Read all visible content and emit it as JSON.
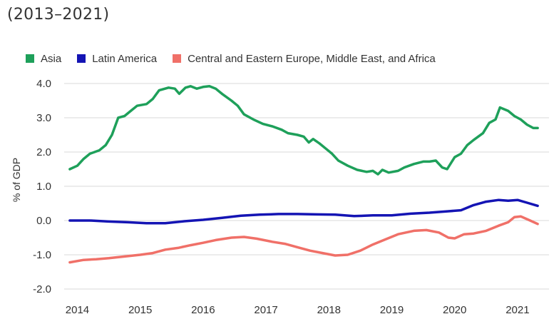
{
  "subtitle": "(2013–2021)",
  "chart_data": {
    "type": "line",
    "title": "",
    "subtitle": "(2013–2021)",
    "xlabel": "",
    "ylabel": "% of GDP",
    "xlim": [
      2013.7,
      2021.5
    ],
    "ylim": [
      -2.0,
      4.0
    ],
    "y_ticks": [
      "4.0",
      "3.0",
      "2.0",
      "1.0",
      "0.0",
      "-1.0",
      "-2.0"
    ],
    "y_tick_values": [
      4,
      3,
      2,
      1,
      0,
      -1,
      -2
    ],
    "x_ticks": [
      "2014",
      "2015",
      "2016",
      "2017",
      "2018",
      "2019",
      "2020",
      "2021"
    ],
    "x_tick_values": [
      2014,
      2015,
      2016,
      2017,
      2018,
      2019,
      2020,
      2021
    ],
    "grid": "horizontal",
    "legend_position": "top-left",
    "series": [
      {
        "name": "Asia",
        "color": "#1ea05a",
        "points": [
          [
            2013.88,
            1.5
          ],
          [
            2014.0,
            1.6
          ],
          [
            2014.1,
            1.8
          ],
          [
            2014.2,
            1.95
          ],
          [
            2014.35,
            2.05
          ],
          [
            2014.45,
            2.2
          ],
          [
            2014.55,
            2.5
          ],
          [
            2014.65,
            3.0
          ],
          [
            2014.75,
            3.05
          ],
          [
            2014.85,
            3.2
          ],
          [
            2014.95,
            3.35
          ],
          [
            2015.1,
            3.4
          ],
          [
            2015.2,
            3.55
          ],
          [
            2015.3,
            3.8
          ],
          [
            2015.45,
            3.88
          ],
          [
            2015.55,
            3.85
          ],
          [
            2015.62,
            3.7
          ],
          [
            2015.72,
            3.88
          ],
          [
            2015.8,
            3.92
          ],
          [
            2015.9,
            3.85
          ],
          [
            2016.0,
            3.9
          ],
          [
            2016.1,
            3.92
          ],
          [
            2016.2,
            3.85
          ],
          [
            2016.3,
            3.7
          ],
          [
            2016.45,
            3.5
          ],
          [
            2016.55,
            3.35
          ],
          [
            2016.65,
            3.1
          ],
          [
            2016.8,
            2.95
          ],
          [
            2016.95,
            2.82
          ],
          [
            2017.1,
            2.75
          ],
          [
            2017.25,
            2.65
          ],
          [
            2017.35,
            2.55
          ],
          [
            2017.5,
            2.5
          ],
          [
            2017.6,
            2.45
          ],
          [
            2017.68,
            2.28
          ],
          [
            2017.75,
            2.38
          ],
          [
            2017.85,
            2.25
          ],
          [
            2017.95,
            2.1
          ],
          [
            2018.05,
            1.95
          ],
          [
            2018.15,
            1.75
          ],
          [
            2018.3,
            1.6
          ],
          [
            2018.45,
            1.48
          ],
          [
            2018.6,
            1.42
          ],
          [
            2018.7,
            1.45
          ],
          [
            2018.78,
            1.35
          ],
          [
            2018.85,
            1.48
          ],
          [
            2018.95,
            1.4
          ],
          [
            2019.1,
            1.45
          ],
          [
            2019.2,
            1.55
          ],
          [
            2019.35,
            1.65
          ],
          [
            2019.5,
            1.72
          ],
          [
            2019.6,
            1.72
          ],
          [
            2019.7,
            1.75
          ],
          [
            2019.8,
            1.55
          ],
          [
            2019.88,
            1.5
          ],
          [
            2020.0,
            1.85
          ],
          [
            2020.1,
            1.95
          ],
          [
            2020.2,
            2.2
          ],
          [
            2020.3,
            2.35
          ],
          [
            2020.45,
            2.55
          ],
          [
            2020.55,
            2.85
          ],
          [
            2020.65,
            2.95
          ],
          [
            2020.72,
            3.3
          ],
          [
            2020.85,
            3.2
          ],
          [
            2020.95,
            3.05
          ],
          [
            2021.05,
            2.95
          ],
          [
            2021.15,
            2.8
          ],
          [
            2021.25,
            2.7
          ],
          [
            2021.32,
            2.7
          ]
        ]
      },
      {
        "name": "Latin America",
        "color": "#1414b4",
        "points": [
          [
            2013.88,
            0.0
          ],
          [
            2014.2,
            0.0
          ],
          [
            2014.5,
            -0.03
          ],
          [
            2014.8,
            -0.05
          ],
          [
            2015.1,
            -0.08
          ],
          [
            2015.4,
            -0.08
          ],
          [
            2015.7,
            -0.02
          ],
          [
            2016.0,
            0.02
          ],
          [
            2016.3,
            0.08
          ],
          [
            2016.6,
            0.14
          ],
          [
            2016.9,
            0.17
          ],
          [
            2017.2,
            0.19
          ],
          [
            2017.5,
            0.19
          ],
          [
            2017.8,
            0.18
          ],
          [
            2018.1,
            0.17
          ],
          [
            2018.4,
            0.13
          ],
          [
            2018.7,
            0.15
          ],
          [
            2019.0,
            0.15
          ],
          [
            2019.3,
            0.2
          ],
          [
            2019.6,
            0.23
          ],
          [
            2019.9,
            0.27
          ],
          [
            2020.1,
            0.3
          ],
          [
            2020.3,
            0.45
          ],
          [
            2020.5,
            0.55
          ],
          [
            2020.7,
            0.6
          ],
          [
            2020.85,
            0.58
          ],
          [
            2021.0,
            0.6
          ],
          [
            2021.15,
            0.52
          ],
          [
            2021.32,
            0.43
          ]
        ]
      },
      {
        "name": "Central and Eastern Europe, Middle East, and Africa",
        "color": "#f07068",
        "points": [
          [
            2013.88,
            -1.22
          ],
          [
            2014.1,
            -1.15
          ],
          [
            2014.3,
            -1.13
          ],
          [
            2014.5,
            -1.1
          ],
          [
            2014.75,
            -1.05
          ],
          [
            2015.0,
            -1.0
          ],
          [
            2015.2,
            -0.95
          ],
          [
            2015.4,
            -0.85
          ],
          [
            2015.6,
            -0.8
          ],
          [
            2015.8,
            -0.72
          ],
          [
            2016.0,
            -0.65
          ],
          [
            2016.2,
            -0.57
          ],
          [
            2016.45,
            -0.5
          ],
          [
            2016.65,
            -0.48
          ],
          [
            2016.85,
            -0.53
          ],
          [
            2017.1,
            -0.62
          ],
          [
            2017.3,
            -0.68
          ],
          [
            2017.5,
            -0.78
          ],
          [
            2017.7,
            -0.88
          ],
          [
            2017.9,
            -0.95
          ],
          [
            2018.1,
            -1.02
          ],
          [
            2018.3,
            -1.0
          ],
          [
            2018.5,
            -0.88
          ],
          [
            2018.7,
            -0.7
          ],
          [
            2018.9,
            -0.55
          ],
          [
            2019.1,
            -0.4
          ],
          [
            2019.35,
            -0.3
          ],
          [
            2019.55,
            -0.28
          ],
          [
            2019.75,
            -0.35
          ],
          [
            2019.9,
            -0.5
          ],
          [
            2020.0,
            -0.52
          ],
          [
            2020.15,
            -0.4
          ],
          [
            2020.3,
            -0.38
          ],
          [
            2020.5,
            -0.3
          ],
          [
            2020.7,
            -0.15
          ],
          [
            2020.85,
            -0.05
          ],
          [
            2020.95,
            0.1
          ],
          [
            2021.05,
            0.12
          ],
          [
            2021.2,
            0.0
          ],
          [
            2021.32,
            -0.1
          ]
        ]
      }
    ]
  }
}
